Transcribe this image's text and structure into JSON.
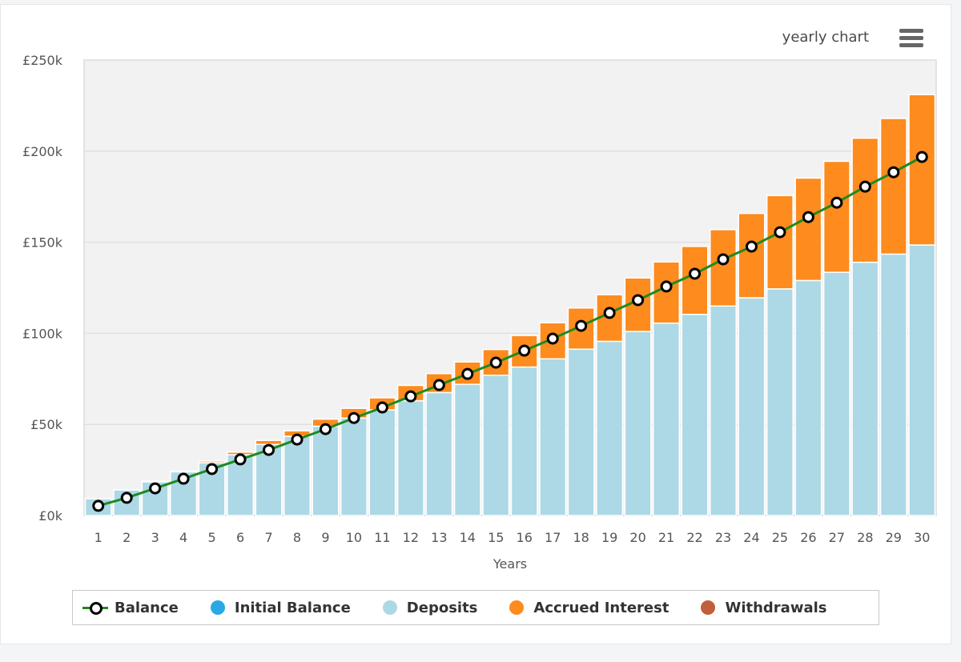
{
  "header": {
    "title": "yearly chart",
    "menu_icon": "hamburger-menu-icon"
  },
  "legend": {
    "items": [
      {
        "label": "Balance",
        "color": "#1e8a1e",
        "type": "line"
      },
      {
        "label": "Initial Balance",
        "color": "#29a8e6",
        "type": "dot"
      },
      {
        "label": "Deposits",
        "color": "#add8e6",
        "type": "dot"
      },
      {
        "label": "Accrued Interest",
        "color": "#fd8b1e",
        "type": "dot"
      },
      {
        "label": "Withdrawals",
        "color": "#c0603b",
        "type": "dot"
      }
    ]
  },
  "chart_data": {
    "type": "bar",
    "stacked": true,
    "title": "yearly chart",
    "xlabel": "Years",
    "ylabel": "",
    "ylim": [
      0,
      250
    ],
    "y_unit": "£k",
    "y_ticks": [
      "£0k",
      "£50k",
      "£100k",
      "£150k",
      "£200k",
      "£250k"
    ],
    "y_tick_values": [
      0,
      50,
      100,
      150,
      200,
      250
    ],
    "grid": true,
    "legend_position": "bottom",
    "categories": [
      "1",
      "2",
      "3",
      "4",
      "5",
      "6",
      "7",
      "8",
      "9",
      "10",
      "11",
      "12",
      "13",
      "14",
      "15",
      "16",
      "17",
      "18",
      "19",
      "20",
      "21",
      "22",
      "23",
      "24",
      "25",
      "26",
      "27",
      "28",
      "29",
      "30"
    ],
    "series": [
      {
        "name": "Initial Balance",
        "type": "bar",
        "color": "#29a8e6",
        "values": [
          0,
          0,
          0,
          0,
          0,
          0,
          0,
          0,
          0,
          0,
          0,
          0,
          0,
          0,
          0,
          0,
          0,
          0,
          0,
          0,
          0,
          0,
          0,
          0,
          0,
          0,
          0,
          0,
          0,
          0
        ]
      },
      {
        "name": "Deposits",
        "type": "bar",
        "color": "#add8e6",
        "values": [
          9.2,
          14,
          18.5,
          24,
          29,
          33.4,
          39,
          43.5,
          49,
          53.5,
          58,
          63,
          67.5,
          72,
          77,
          81.5,
          86,
          91.3,
          95.6,
          101,
          105.6,
          110.4,
          115,
          119.5,
          124.4,
          129,
          133.5,
          139,
          143.5,
          148.5
        ]
      },
      {
        "name": "Accrued Interest",
        "type": "bar",
        "color": "#fd8b1e",
        "values": [
          0,
          0,
          0.4,
          0.4,
          0.9,
          1.4,
          2.2,
          3,
          3.9,
          5.3,
          6.6,
          8.4,
          10.4,
          12.3,
          14.1,
          17.3,
          19.8,
          22.6,
          25.6,
          29.4,
          33.6,
          37.3,
          41.9,
          46.3,
          51.2,
          56.2,
          60.9,
          68.1,
          74.4,
          82.5
        ]
      },
      {
        "name": "Withdrawals",
        "type": "bar",
        "color": "#c0603b",
        "values": [
          0,
          0,
          0,
          0,
          0,
          0,
          0,
          0,
          0,
          0,
          0,
          0,
          0,
          0,
          0,
          0,
          0,
          0,
          0,
          0,
          0,
          0,
          0,
          0,
          0,
          0,
          0,
          0,
          0,
          0
        ]
      },
      {
        "name": "Balance",
        "type": "line",
        "color": "#1e8a1e",
        "values": [
          5.3,
          9.7,
          14.9,
          20.2,
          25.5,
          30.8,
          36,
          41.7,
          47.4,
          53.5,
          59.3,
          65.4,
          71.6,
          77.7,
          83.9,
          90.5,
          97.1,
          104.1,
          111.2,
          118.2,
          125.7,
          132.7,
          140.6,
          147.6,
          155.5,
          163.8,
          171.7,
          180.5,
          188.4,
          196.8
        ]
      }
    ]
  }
}
